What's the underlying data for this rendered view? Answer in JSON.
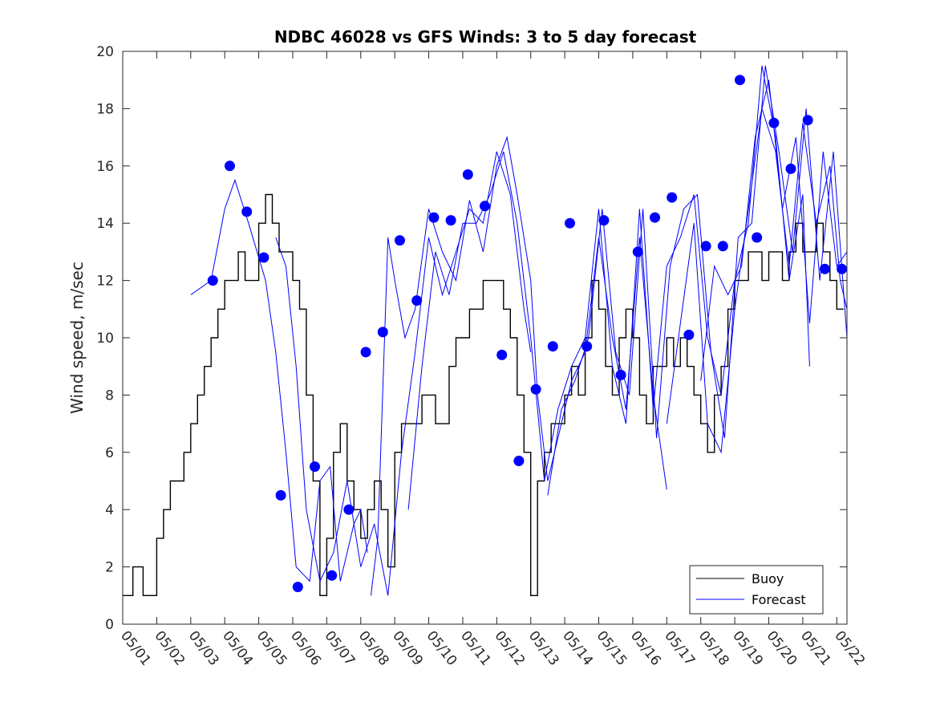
{
  "chart_data": {
    "type": "line",
    "title": "NDBC 46028 vs GFS Winds: 3 to 5 day forecast",
    "xlabel": "",
    "ylabel": "Wind speed, m/sec",
    "ylim": [
      0,
      20
    ],
    "yticks": [
      0,
      2,
      4,
      6,
      8,
      10,
      12,
      14,
      16,
      18,
      20
    ],
    "xlim": [
      0,
      21.3
    ],
    "x_unit": "days after 05/01 00:00",
    "xtick_labels": [
      "05/01",
      "05/02",
      "05/03",
      "05/04",
      "05/05",
      "05/06",
      "05/07",
      "05/08",
      "05/09",
      "05/10",
      "05/11",
      "05/12",
      "05/13",
      "05/14",
      "05/15",
      "05/16",
      "05/17",
      "05/18",
      "05/19",
      "05/20",
      "05/21",
      "05/22"
    ],
    "grid": false,
    "legend": {
      "placement": "bottom-right",
      "entries": [
        "Buoy",
        "Forecast"
      ]
    },
    "colors": {
      "buoy": "#000000",
      "forecast": "#0000ff",
      "axis": "#262626"
    },
    "buoy": {
      "name": "Buoy",
      "x": [
        0,
        0.3,
        0.6,
        0.8,
        1.0,
        1.2,
        1.4,
        1.6,
        1.8,
        2.0,
        2.2,
        2.4,
        2.6,
        2.8,
        3.0,
        3.2,
        3.4,
        3.6,
        3.8,
        4.0,
        4.2,
        4.4,
        4.6,
        4.8,
        5.0,
        5.2,
        5.4,
        5.6,
        5.8,
        6.0,
        6.2,
        6.4,
        6.6,
        6.8,
        7.0,
        7.2,
        7.4,
        7.6,
        7.8,
        8.0,
        8.2,
        8.4,
        8.6,
        8.8,
        9.0,
        9.2,
        9.4,
        9.6,
        9.8,
        10.0,
        10.2,
        10.4,
        10.6,
        10.8,
        11.0,
        11.2,
        11.4,
        11.6,
        11.8,
        12.0,
        12.2,
        12.4,
        12.6,
        12.8,
        13.0,
        13.2,
        13.4,
        13.6,
        13.8,
        14.0,
        14.2,
        14.4,
        14.6,
        14.8,
        15.0,
        15.2,
        15.4,
        15.6,
        15.8,
        16.0,
        16.2,
        16.4,
        16.6,
        16.8,
        17.0,
        17.2,
        17.4,
        17.6,
        17.8,
        18.0,
        18.2,
        18.4,
        18.6,
        18.8,
        19.0,
        19.2,
        19.4,
        19.6,
        19.8,
        20.0,
        20.2,
        20.4,
        20.6,
        20.8,
        21.0,
        21.2
      ],
      "y": [
        1,
        2,
        1,
        1,
        3,
        4,
        5,
        5,
        6,
        7,
        8,
        9,
        10,
        11,
        12,
        12,
        13,
        12,
        12,
        14,
        15,
        14,
        13,
        13,
        12,
        11,
        8,
        5,
        1,
        3,
        6,
        7,
        5,
        4,
        3,
        4,
        5,
        4,
        2,
        6,
        7,
        7,
        7,
        8,
        8,
        7,
        7,
        9,
        10,
        10,
        11,
        11,
        12,
        12,
        12,
        11,
        10,
        8,
        6,
        1,
        5,
        6,
        7,
        7,
        8,
        9,
        8,
        10,
        12,
        11,
        9,
        8,
        10,
        11,
        10,
        8,
        7,
        9,
        9,
        10,
        9,
        10,
        9,
        8,
        7,
        6,
        8,
        9,
        11,
        12,
        12,
        13,
        13,
        12,
        13,
        13,
        12,
        13,
        14,
        13,
        13,
        14,
        13,
        12,
        11,
        11
      ]
    },
    "forecast_markers": {
      "name": "Forecast",
      "x": [
        2.65,
        3.15,
        3.65,
        4.15,
        4.65,
        5.15,
        5.65,
        6.15,
        6.65,
        7.15,
        7.65,
        8.15,
        8.65,
        9.15,
        9.65,
        10.15,
        10.65,
        11.15,
        11.65,
        12.15,
        12.65,
        13.15,
        13.65,
        14.15,
        14.65,
        15.15,
        15.65,
        16.15,
        16.65,
        17.15,
        17.65,
        18.15,
        18.65,
        19.15,
        19.65,
        20.15,
        20.65,
        21.15
      ],
      "y": [
        12.0,
        16.0,
        14.4,
        12.8,
        4.5,
        1.3,
        5.5,
        1.7,
        4.0,
        9.5,
        10.2,
        13.4,
        11.3,
        14.2,
        14.1,
        15.7,
        14.6,
        9.4,
        5.7,
        8.2,
        9.7,
        14.0,
        9.7,
        14.1,
        8.7,
        13.0,
        14.2,
        14.9,
        10.1,
        13.2,
        13.2,
        19.0,
        13.5,
        17.5,
        15.9,
        17.6,
        12.4,
        12.4
      ]
    },
    "forecast_runs": [
      {
        "x": [
          2.0,
          2.6,
          3.0,
          3.3,
          3.7,
          4.2,
          4.5,
          4.8,
          5.1,
          5.5,
          5.8,
          6.1,
          6.4,
          6.8,
          7.0,
          7.2
        ],
        "y": [
          11.5,
          12.0,
          14.5,
          15.5,
          14.0,
          12.0,
          9.5,
          6.0,
          2.0,
          1.5,
          5.0,
          5.5,
          1.5,
          3.5,
          4.0,
          2.5
        ]
      },
      {
        "x": [
          4.5,
          4.8,
          5.1,
          5.4,
          5.8,
          6.2,
          6.6,
          7.0,
          7.4,
          7.8,
          8.2,
          8.6,
          9.0,
          9.4,
          9.8,
          10.2,
          10.6,
          11.0,
          11.4,
          11.8,
          12.0
        ],
        "y": [
          13.5,
          12.5,
          9.0,
          4.0,
          1.5,
          2.5,
          5.0,
          2.0,
          3.5,
          1.0,
          6.0,
          9.5,
          13.5,
          11.5,
          13.0,
          14.5,
          14.0,
          16.5,
          15.0,
          11.0,
          9.5
        ]
      },
      {
        "x": [
          7.3,
          7.5,
          7.8,
          8.0,
          8.3,
          8.6,
          9.0,
          9.4,
          9.8,
          10.2,
          10.6,
          11.0,
          11.3,
          11.6,
          12.0,
          12.2,
          12.5,
          12.9,
          13.2,
          13.6,
          14.0,
          14.4,
          14.8,
          15.2,
          15.6,
          16.0
        ],
        "y": [
          1.0,
          3.0,
          13.5,
          12.0,
          10.0,
          11.0,
          14.5,
          13.0,
          12.0,
          14.8,
          13.0,
          16.0,
          17.0,
          15.0,
          12.0,
          8.0,
          5.0,
          7.0,
          8.5,
          9.5,
          13.5,
          10.0,
          7.5,
          13.5,
          8.0,
          4.7
        ]
      },
      {
        "x": [
          8.4,
          8.8,
          9.2,
          9.6,
          10.0,
          10.4,
          10.8,
          11.2,
          11.6,
          12.0,
          12.4,
          12.8,
          13.2,
          13.6,
          14.0,
          14.4,
          14.8,
          15.2,
          15.6,
          16.0,
          16.4,
          16.8,
          17.2,
          17.6,
          18.0,
          18.4,
          18.8,
          19.2,
          19.6,
          20.0,
          20.2
        ],
        "y": [
          4.0,
          9.0,
          13.0,
          11.5,
          14.0,
          14.0,
          15.0,
          16.5,
          14.0,
          10.0,
          5.0,
          7.5,
          9.0,
          10.0,
          14.5,
          9.0,
          7.0,
          14.5,
          7.5,
          12.5,
          13.5,
          15.0,
          10.0,
          8.0,
          12.0,
          14.0,
          19.5,
          17.0,
          12.0,
          15.0,
          9.0
        ]
      },
      {
        "x": [
          12.5,
          12.9,
          13.3,
          13.7,
          14.1,
          14.5,
          14.9,
          15.3,
          15.7,
          16.1,
          16.5,
          16.9,
          17.3,
          17.7,
          18.1,
          18.5,
          18.9,
          19.3,
          19.7,
          20.1,
          20.5,
          20.9,
          21.3
        ],
        "y": [
          4.5,
          7.5,
          8.5,
          10.0,
          14.5,
          9.5,
          8.0,
          14.5,
          6.5,
          12.5,
          14.5,
          15.0,
          9.5,
          6.5,
          13.5,
          14.0,
          19.5,
          16.5,
          13.0,
          18.0,
          12.0,
          16.5,
          10.0
        ]
      },
      {
        "x": [
          16.0,
          16.4,
          16.8,
          17.2,
          17.6,
          18.0,
          18.4,
          18.8,
          19.2,
          19.6,
          20.0,
          20.4,
          20.8,
          21.1,
          21.3
        ],
        "y": [
          7.0,
          10.5,
          14.0,
          7.0,
          6.0,
          11.0,
          14.5,
          18.0,
          16.5,
          12.5,
          17.5,
          14.0,
          16.0,
          12.0,
          11.0
        ]
      },
      {
        "x": [
          17.0,
          17.4,
          17.8,
          18.2,
          18.6,
          19.0,
          19.4,
          19.8,
          20.2,
          20.6,
          21.0,
          21.3
        ],
        "y": [
          8.5,
          12.5,
          11.5,
          12.5,
          17.0,
          19.0,
          14.5,
          17.0,
          10.5,
          16.5,
          12.5,
          13.0
        ]
      }
    ]
  }
}
